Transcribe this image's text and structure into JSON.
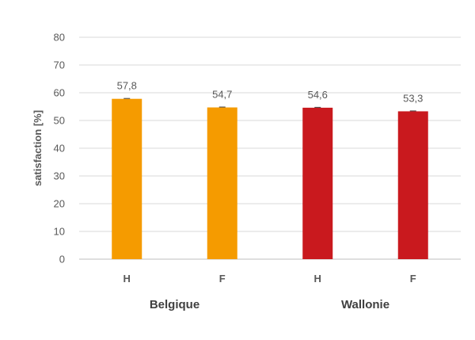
{
  "chart_data": {
    "type": "bar",
    "ylabel": "satisfaction [%]",
    "ylim": [
      0,
      80
    ],
    "yticks": [
      "0",
      "10",
      "20",
      "30",
      "40",
      "50",
      "60",
      "70",
      "80"
    ],
    "grid": true,
    "groups": [
      {
        "label": "Belgique",
        "color": "#F59B00",
        "bars": [
          {
            "category": "H",
            "value": 57.8,
            "label": "57,8"
          },
          {
            "category": "F",
            "value": 54.7,
            "label": "54,7"
          }
        ]
      },
      {
        "label": "Wallonie",
        "color": "#C9191E",
        "bars": [
          {
            "category": "H",
            "value": 54.6,
            "label": "54,6"
          },
          {
            "category": "F",
            "value": 53.3,
            "label": "53,3"
          }
        ]
      }
    ]
  }
}
